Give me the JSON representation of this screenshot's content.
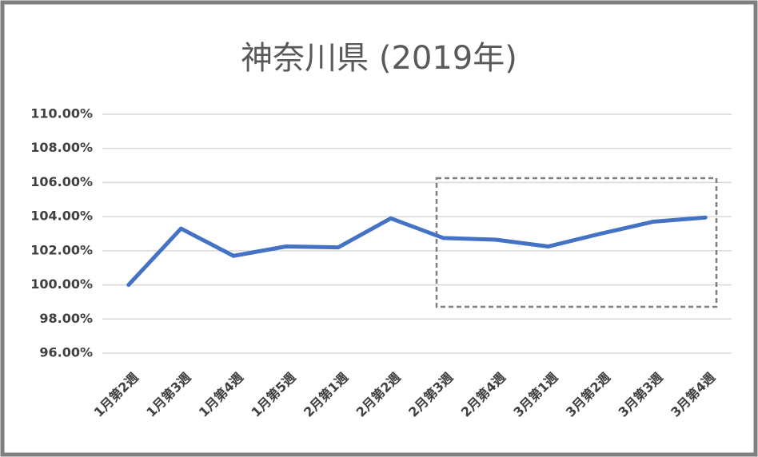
{
  "chart_data": {
    "type": "line",
    "title": "神奈川県 (2019年)",
    "categories": [
      "1月第2週",
      "1月第3週",
      "1月第4週",
      "1月第5週",
      "2月第1週",
      "2月第2週",
      "2月第3週",
      "2月第4週",
      "3月第1週",
      "3月第2週",
      "3月第3週",
      "3月第4週"
    ],
    "values": [
      100,
      103.3,
      101.7,
      102.25,
      102.2,
      103.9,
      102.75,
      102.65,
      102.25,
      103.0,
      103.7,
      103.95
    ],
    "color": "#4472c4",
    "ylim": [
      96,
      110
    ],
    "yticks": [
      {
        "value": 96,
        "label": "96.00%"
      },
      {
        "value": 98,
        "label": "98.00%"
      },
      {
        "value": 100,
        "label": "100.00%"
      },
      {
        "value": 102,
        "label": "102.00%"
      },
      {
        "value": 104,
        "label": "104.00%"
      },
      {
        "value": 106,
        "label": "106.00%"
      },
      {
        "value": 108,
        "label": "108.00%"
      },
      {
        "value": 110,
        "label": "110.00%"
      }
    ],
    "grid": true
  }
}
